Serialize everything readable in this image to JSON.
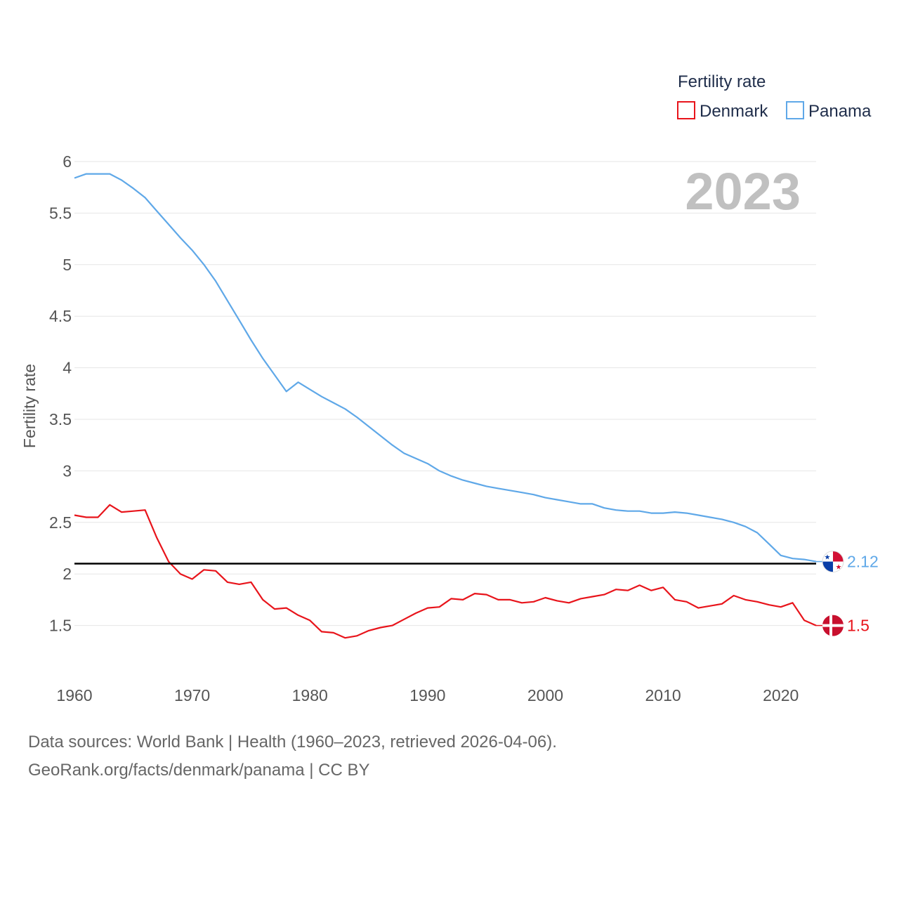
{
  "chart_data": {
    "type": "line",
    "title": "Fertility rate",
    "year_label": "2023",
    "xlabel": "",
    "ylabel": "Fertility rate",
    "xlim": [
      1960,
      2023
    ],
    "ylim": [
      1.0,
      6.0
    ],
    "x_ticks": [
      1960,
      1970,
      1980,
      1990,
      2000,
      2010,
      2020
    ],
    "y_ticks": [
      {
        "value": 1.5,
        "label": "1.5"
      },
      {
        "value": 2,
        "label": "2"
      },
      {
        "value": 2.5,
        "label": "2.5"
      },
      {
        "value": 3,
        "label": "3"
      },
      {
        "value": 3.5,
        "label": "3.5"
      },
      {
        "value": 4,
        "label": "4"
      },
      {
        "value": 4.5,
        "label": "4.5"
      },
      {
        "value": 5,
        "label": "5"
      },
      {
        "value": 5.5,
        "label": "5.5"
      },
      {
        "value": 6,
        "label": "6"
      }
    ],
    "reference_line": 2.1,
    "legend_position": "top-right",
    "x": [
      1960,
      1961,
      1962,
      1963,
      1964,
      1965,
      1966,
      1967,
      1968,
      1969,
      1970,
      1971,
      1972,
      1973,
      1974,
      1975,
      1976,
      1977,
      1978,
      1979,
      1980,
      1981,
      1982,
      1983,
      1984,
      1985,
      1986,
      1987,
      1988,
      1989,
      1990,
      1991,
      1992,
      1993,
      1994,
      1995,
      1996,
      1997,
      1998,
      1999,
      2000,
      2001,
      2002,
      2003,
      2004,
      2005,
      2006,
      2007,
      2008,
      2009,
      2010,
      2011,
      2012,
      2013,
      2014,
      2015,
      2016,
      2017,
      2018,
      2019,
      2020,
      2021,
      2022,
      2023
    ],
    "series": [
      {
        "name": "Denmark",
        "color": "#e8141b",
        "end_label": "1.5",
        "values": [
          2.57,
          2.55,
          2.55,
          2.67,
          2.6,
          2.61,
          2.62,
          2.35,
          2.12,
          2.0,
          1.95,
          2.04,
          2.03,
          1.92,
          1.9,
          1.92,
          1.75,
          1.66,
          1.67,
          1.6,
          1.55,
          1.44,
          1.43,
          1.38,
          1.4,
          1.45,
          1.48,
          1.5,
          1.56,
          1.62,
          1.67,
          1.68,
          1.76,
          1.75,
          1.81,
          1.8,
          1.75,
          1.75,
          1.72,
          1.73,
          1.77,
          1.74,
          1.72,
          1.76,
          1.78,
          1.8,
          1.85,
          1.84,
          1.89,
          1.84,
          1.87,
          1.75,
          1.73,
          1.67,
          1.69,
          1.71,
          1.79,
          1.75,
          1.73,
          1.7,
          1.68,
          1.72,
          1.55,
          1.5
        ]
      },
      {
        "name": "Panama",
        "color": "#5fa8e8",
        "end_label": "2.12",
        "values": [
          5.84,
          5.88,
          5.88,
          5.88,
          5.82,
          5.74,
          5.65,
          5.52,
          5.39,
          5.26,
          5.14,
          5.0,
          4.84,
          4.65,
          4.46,
          4.27,
          4.09,
          3.93,
          3.77,
          3.86,
          3.79,
          3.72,
          3.66,
          3.6,
          3.52,
          3.43,
          3.34,
          3.25,
          3.17,
          3.12,
          3.07,
          3.0,
          2.95,
          2.91,
          2.88,
          2.85,
          2.83,
          2.81,
          2.79,
          2.77,
          2.74,
          2.72,
          2.7,
          2.68,
          2.68,
          2.64,
          2.62,
          2.61,
          2.61,
          2.59,
          2.59,
          2.6,
          2.59,
          2.57,
          2.55,
          2.53,
          2.5,
          2.46,
          2.4,
          2.29,
          2.18,
          2.15,
          2.14,
          2.12
        ]
      }
    ]
  },
  "footer": {
    "sources": "Data sources: World Bank | Health (1960–2023, retrieved 2026-04-06).",
    "credit": "GeoRank.org/facts/denmark/panama | CC BY"
  },
  "icons": {
    "denmark_flag": "denmark-flag-icon",
    "panama_flag": "panama-flag-icon"
  }
}
